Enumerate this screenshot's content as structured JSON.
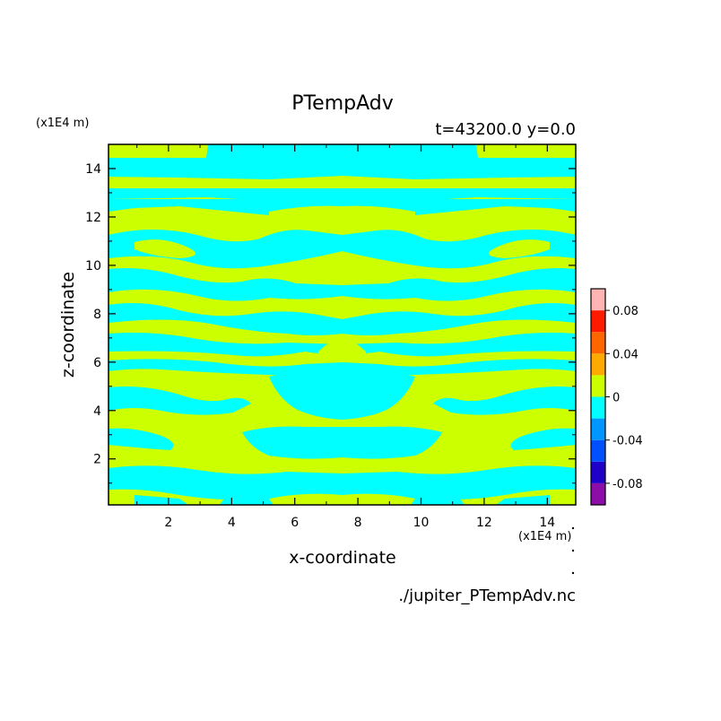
{
  "chart_data": {
    "type": "heatmap",
    "title": "PTempAdv",
    "subtitle": "t=43200.0 y=0.0",
    "xlabel": "x-coordinate",
    "ylabel": "z-coordinate",
    "x_unit": "(x1E4 m)",
    "y_unit": "(x1E4 m)",
    "xlim": [
      0.1,
      14.9
    ],
    "ylim": [
      0.1,
      15.0
    ],
    "x_ticks": [
      2,
      4,
      6,
      8,
      10,
      12,
      14
    ],
    "y_ticks": [
      2,
      4,
      6,
      8,
      10,
      12,
      14
    ],
    "grid": false,
    "symmetry": "mirror about x = 7.5",
    "dominant_bins": [
      "-0.02 to 0",
      "0 to 0.02"
    ],
    "bands": [
      {
        "z": [
          0.1,
          0.6
        ],
        "value": "0 to 0.02",
        "note": "bottom row mostly positive with cyan gaps"
      },
      {
        "z": [
          0.6,
          1.2
        ],
        "value": "-0.02 to 0",
        "note": "cyan band, yellow near edges"
      },
      {
        "z": [
          1.2,
          2.5
        ],
        "value": "0 to 0.02",
        "note": "yellow with cyan fingers"
      },
      {
        "z": [
          2.5,
          3.5
        ],
        "value": "mixed",
        "note": "central cyan lens near x 5-10"
      },
      {
        "z": [
          3.5,
          6.0
        ],
        "value": "0 to 0.02",
        "note": "yellow with cyan strands and central cyan column"
      },
      {
        "z": [
          6.0,
          7.0
        ],
        "value": "-0.02 to 0",
        "note": "cyan band with central yellow dome"
      },
      {
        "z": [
          7.0,
          11.5
        ],
        "value": "mixed",
        "note": "interleaved yellow and cyan filaments"
      },
      {
        "z": [
          11.5,
          12.6
        ],
        "value": "-0.02 to 0",
        "note": "cyan with central yellow lens"
      },
      {
        "z": [
          12.6,
          13.1
        ],
        "value": "0 to 0.02",
        "note": "yellow band"
      },
      {
        "z": [
          13.1,
          13.6
        ],
        "value": "-0.02 to 0",
        "note": "cyan band"
      },
      {
        "z": [
          13.6,
          14.0
        ],
        "value": "0 to 0.02",
        "note": "yellow band"
      },
      {
        "z": [
          14.0,
          15.0
        ],
        "value": "-0.02 to 0",
        "note": "cyan top, yellow corners"
      }
    ],
    "colorbar": {
      "bins": [
        {
          "range": [
            -0.1,
            -0.08
          ],
          "color": "#8c0da8"
        },
        {
          "range": [
            -0.08,
            -0.06
          ],
          "color": "#1e00c8"
        },
        {
          "range": [
            -0.06,
            -0.04
          ],
          "color": "#0050ff"
        },
        {
          "range": [
            -0.04,
            -0.02
          ],
          "color": "#0096ff"
        },
        {
          "range": [
            -0.02,
            0.0
          ],
          "color": "#00ffff"
        },
        {
          "range": [
            0.0,
            0.02
          ],
          "color": "#ccff00"
        },
        {
          "range": [
            0.02,
            0.04
          ],
          "color": "#ffaa00"
        },
        {
          "range": [
            0.04,
            0.06
          ],
          "color": "#ff6600"
        },
        {
          "range": [
            0.06,
            0.08
          ],
          "color": "#ff1a00"
        },
        {
          "range": [
            0.08,
            0.1
          ],
          "color": "#ffb4b4"
        }
      ],
      "tick_labels": [
        "0.08",
        "0.04",
        "0",
        "-0.04",
        "-0.08"
      ],
      "tick_values": [
        0.08,
        0.04,
        0.0,
        -0.04,
        -0.08
      ]
    }
  },
  "footer": {
    "source_file": "./jupiter_PTempAdv.nc"
  },
  "colors": {
    "positive": "#ccff00",
    "negative": "#00ffff",
    "axis": "#000000"
  }
}
